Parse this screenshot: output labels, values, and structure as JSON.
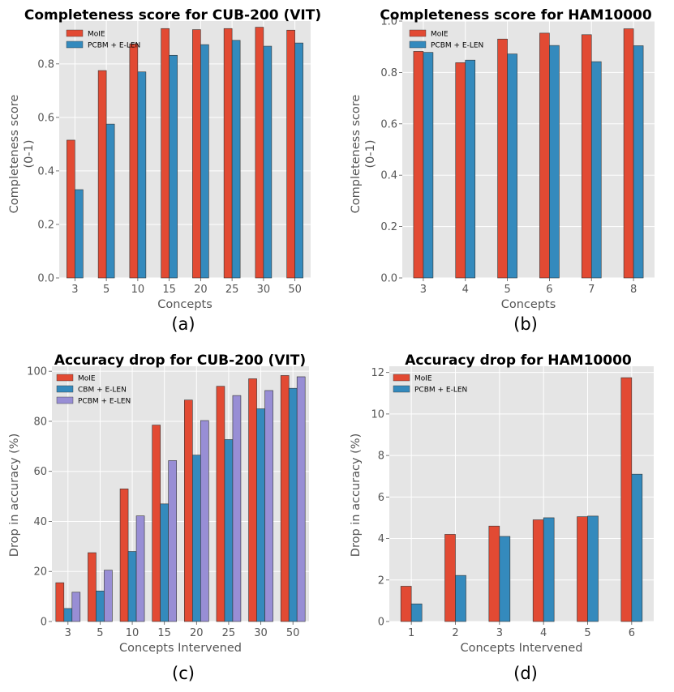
{
  "chart_data": [
    {
      "type": "bar",
      "panel": "(a)",
      "title": "Completeness score for CUB-200 (VIT)",
      "xlabel": "Concepts",
      "ylabel": [
        "Completeness score",
        "(0-1)"
      ],
      "categories": [
        "3",
        "5",
        "10",
        "15",
        "20",
        "25",
        "30",
        "50"
      ],
      "ylim": [
        0,
        0.96
      ],
      "yticks": [
        0.0,
        0.2,
        0.4,
        0.6,
        0.8
      ],
      "ytick_labels": [
        "0.0",
        "0.2",
        "0.4",
        "0.6",
        "0.8"
      ],
      "legend_position": "top-left",
      "series": [
        {
          "name": "MoIE",
          "color": "#E24A33",
          "values": [
            0.515,
            0.775,
            0.875,
            0.932,
            0.928,
            0.932,
            0.937,
            0.926
          ]
        },
        {
          "name": "PCBM + E-LEN",
          "color": "#348ABD",
          "values": [
            0.33,
            0.575,
            0.77,
            0.832,
            0.872,
            0.888,
            0.866,
            0.878
          ]
        }
      ]
    },
    {
      "type": "bar",
      "panel": "(b)",
      "title": "Completeness score for HAM10000",
      "xlabel": "Concepts",
      "ylabel": [
        "Completeness score",
        "(0-1)"
      ],
      "categories": [
        "3",
        "4",
        "5",
        "6",
        "7",
        "8"
      ],
      "ylim": [
        0,
        1.0
      ],
      "yticks": [
        0.0,
        0.2,
        0.4,
        0.6,
        0.8,
        1.0
      ],
      "ytick_labels": [
        "0.0",
        "0.2",
        "0.4",
        "0.6",
        "0.8",
        "1.0"
      ],
      "legend_position": "top-left",
      "series": [
        {
          "name": "MoIE",
          "color": "#E24A33",
          "values": [
            0.882,
            0.838,
            0.93,
            0.953,
            0.947,
            0.97
          ]
        },
        {
          "name": "PCBM + E-LEN",
          "color": "#348ABD",
          "values": [
            0.878,
            0.848,
            0.872,
            0.905,
            0.842,
            0.904
          ]
        }
      ]
    },
    {
      "type": "bar",
      "panel": "(c)",
      "title": "Accuracy drop for CUB-200 (VIT)",
      "xlabel": "Concepts Intervened",
      "ylabel": [
        "Drop in accuracy (%)"
      ],
      "categories": [
        "3",
        "5",
        "10",
        "15",
        "20",
        "25",
        "30",
        "50"
      ],
      "ylim": [
        0,
        102
      ],
      "yticks": [
        0,
        20,
        40,
        60,
        80,
        100
      ],
      "ytick_labels": [
        "0",
        "20",
        "40",
        "60",
        "80",
        "100"
      ],
      "legend_position": "top-left",
      "series": [
        {
          "name": "MoIE",
          "color": "#E24A33",
          "values": [
            15.5,
            27.5,
            53,
            78.5,
            88.5,
            94,
            97,
            98.3
          ]
        },
        {
          "name": "CBM + E-LEN",
          "color": "#348ABD",
          "values": [
            5.2,
            12.2,
            28,
            47,
            66.5,
            72.7,
            85,
            93.2
          ]
        },
        {
          "name": "PCBM + E-LEN",
          "color": "#988ED5",
          "values": [
            11.7,
            20.5,
            42.2,
            64.3,
            80.3,
            90.3,
            92.3,
            97.8
          ]
        }
      ]
    },
    {
      "type": "bar",
      "panel": "(d)",
      "title": "Accuracy drop for HAM10000",
      "xlabel": "Concepts Intervened",
      "ylabel": [
        "Drop in accuracy (%)"
      ],
      "categories": [
        "1",
        "2",
        "3",
        "4",
        "5",
        "6"
      ],
      "ylim": [
        0,
        12.3
      ],
      "yticks": [
        0,
        2,
        4,
        6,
        8,
        10,
        12
      ],
      "ytick_labels": [
        "0",
        "2",
        "4",
        "6",
        "8",
        "10",
        "12"
      ],
      "legend_position": "top-left",
      "series": [
        {
          "name": "MoIE",
          "color": "#E24A33",
          "values": [
            1.7,
            4.2,
            4.6,
            4.9,
            5.05,
            11.75
          ]
        },
        {
          "name": "PCBM + E-LEN",
          "color": "#348ABD",
          "values": [
            0.85,
            2.22,
            4.1,
            5.0,
            5.08,
            7.1
          ]
        }
      ]
    }
  ]
}
